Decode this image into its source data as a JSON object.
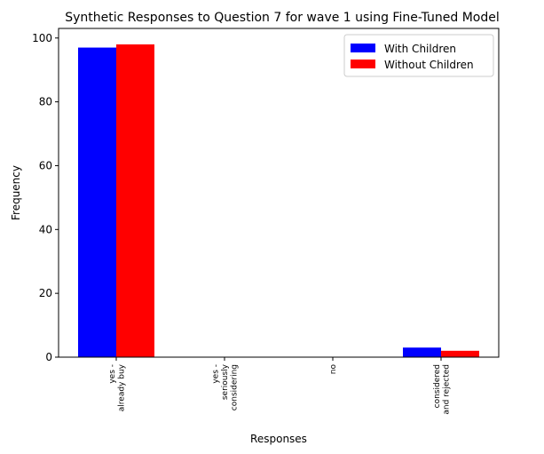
{
  "chart_data": {
    "type": "bar",
    "title": "Synthetic Responses to Question 7 for wave 1 using Fine-Tuned Model",
    "xlabel": "Responses",
    "ylabel": "Frequency",
    "categories": [
      [
        "yes -",
        "already buy"
      ],
      [
        "yes -",
        "seriously",
        "considering"
      ],
      [
        "no"
      ],
      [
        "considered",
        "and rejected"
      ]
    ],
    "series": [
      {
        "name": "With Children",
        "color": "#0000ff",
        "values": [
          97,
          0,
          0,
          3
        ]
      },
      {
        "name": "Without Children",
        "color": "#ff0000",
        "values": [
          98,
          0,
          0,
          2
        ]
      }
    ],
    "ylim": [
      0,
      103
    ],
    "yticks": [
      0,
      20,
      40,
      60,
      80,
      100
    ],
    "legend_position": "top-right",
    "grid": false
  }
}
